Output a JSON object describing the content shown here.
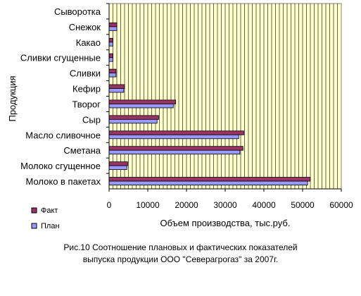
{
  "chart_data": {
    "type": "bar",
    "orientation": "horizontal",
    "categories": [
      "Сыворотка",
      "Снежок",
      "Какао",
      "Сливки сгущенные",
      "Сливки",
      "Кефир",
      "Творог",
      "Сыр",
      "Масло сливочное",
      "Сметана",
      "Молоко сгущенное",
      "Молоко в пакетах"
    ],
    "series": [
      {
        "name": "Факт",
        "color": "#993366",
        "values": [
          0,
          2000,
          1000,
          1000,
          1800,
          4000,
          17200,
          12800,
          34800,
          34600,
          4800,
          52000
        ]
      },
      {
        "name": "План",
        "color": "#9999ff",
        "values": [
          0,
          2000,
          1000,
          1000,
          1800,
          3800,
          16600,
          12400,
          33500,
          33800,
          4600,
          51300
        ]
      }
    ],
    "xlim": [
      0,
      60000
    ],
    "xticks": [
      "0",
      "10000",
      "20000",
      "30000",
      "40000",
      "50000",
      "60000"
    ],
    "xlabel": "Объем производства, тыс.руб.",
    "ylabel": "Продукция",
    "grid": true,
    "plot_background": "#ffffcc",
    "legend_position": "bottom-left"
  },
  "caption": {
    "line1": "Рис.10 Соотношение плановых и фактических показателей",
    "line2": "выпуска продукции ООО \"Северагрогаз\" за 2007г."
  }
}
